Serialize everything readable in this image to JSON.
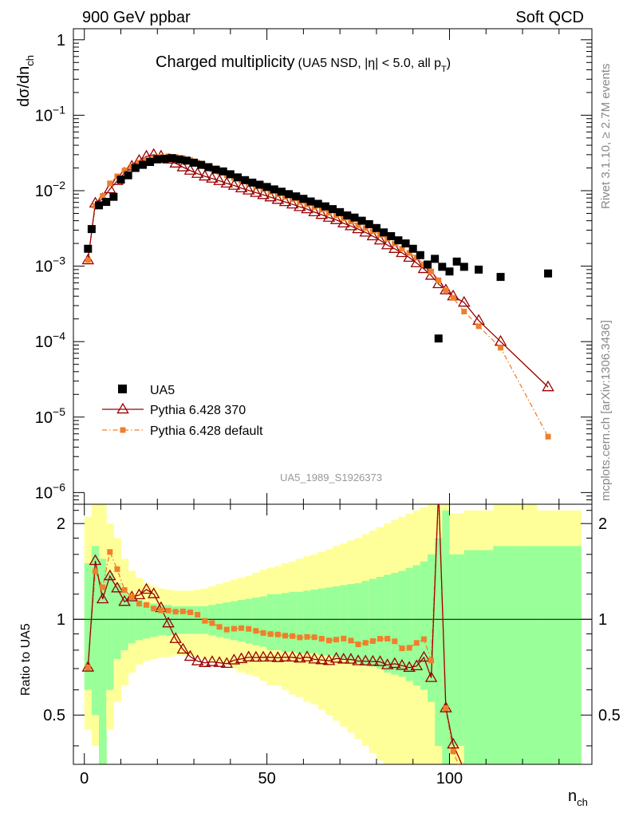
{
  "header": {
    "left": "900 GeV ppbar",
    "right": "Soft QCD"
  },
  "side_labels": {
    "rivet": "Rivet 3.1.10, ≥ 2.7M events",
    "mcplots": "mcplots.cern.ch [arXiv:1306.3436]"
  },
  "chart_data": {
    "type": "scatter",
    "title": "Charged multiplicity",
    "subtitle": "(UA5 NSD, |η| < 5.0, all p",
    "subtitle_sub": "T",
    "subtitle_end": ")",
    "analysis_id": "UA5_1989_S1926373",
    "ylabel_main": "dσ/dn",
    "ylabel_main_sub": "ch",
    "ylabel_ratio": "Ratio to UA5",
    "xlabel": "n",
    "xlabel_sub": "ch",
    "xlim": [
      -3,
      139
    ],
    "ylim_main": [
      7e-07,
      1.4
    ],
    "ylim_ratio": [
      0.35,
      2.3
    ],
    "x_ticks": [
      0,
      50,
      100
    ],
    "x_tick_labels": [
      "0",
      "50",
      "100"
    ],
    "y_ticks_main": [
      1,
      0.1,
      0.01,
      0.001,
      0.0001,
      1e-05,
      1e-06
    ],
    "y_tick_labels_main": [
      {
        "base": "1",
        "exp": ""
      },
      {
        "base": "10",
        "exp": "−1"
      },
      {
        "base": "10",
        "exp": "−2"
      },
      {
        "base": "10",
        "exp": "−3"
      },
      {
        "base": "10",
        "exp": "−4"
      },
      {
        "base": "10",
        "exp": "−5"
      },
      {
        "base": "10",
        "exp": "−6"
      }
    ],
    "y_ticks_ratio": [
      0.5,
      1,
      2
    ],
    "y_tick_labels_ratio": [
      "0.5",
      "1",
      "2"
    ],
    "legend": [
      {
        "name": "UA5",
        "marker": "square",
        "color": "#000000"
      },
      {
        "name": "Pythia 6.428 370",
        "marker": "triangle",
        "color": "#990000"
      },
      {
        "name": "Pythia 6.428 default",
        "marker": "square-small",
        "color": "#f07f2a"
      }
    ],
    "colors": {
      "data": "#000000",
      "p370": "#990000",
      "pdefault": "#f07f2a",
      "band_outer": "#ffff99",
      "band_inner": "#99ff99"
    },
    "series": [
      {
        "name": "UA5",
        "x": [
          1,
          2,
          4,
          6,
          8,
          10,
          12,
          14,
          16,
          18,
          20,
          22,
          24,
          26,
          28,
          30,
          32,
          34,
          36,
          38,
          40,
          42,
          44,
          46,
          48,
          50,
          52,
          54,
          56,
          58,
          60,
          62,
          64,
          66,
          68,
          70,
          72,
          74,
          76,
          78,
          80,
          82,
          84,
          86,
          88,
          90,
          92,
          94,
          96,
          97,
          98,
          100,
          102,
          104,
          108,
          114,
          127
        ],
        "y": [
          0.0017,
          0.0031,
          0.0064,
          0.0071,
          0.0083,
          0.014,
          0.016,
          0.02,
          0.022,
          0.024,
          0.026,
          0.0265,
          0.027,
          0.026,
          0.025,
          0.0235,
          0.022,
          0.0205,
          0.019,
          0.018,
          0.0165,
          0.015,
          0.0138,
          0.0128,
          0.012,
          0.0112,
          0.0104,
          0.0097,
          0.009,
          0.0084,
          0.0078,
          0.0072,
          0.0067,
          0.0062,
          0.0057,
          0.0052,
          0.0047,
          0.0044,
          0.004,
          0.0036,
          0.0032,
          0.0028,
          0.0025,
          0.0022,
          0.002,
          0.0017,
          0.0014,
          0.00105,
          0.00125,
          0.00011,
          0.00098,
          0.00085,
          0.00115,
          0.00098,
          0.0009,
          0.00072,
          0.0008
        ]
      },
      {
        "name": "Pythia 6.428 370",
        "x": [
          1,
          3,
          5,
          7,
          9,
          11,
          13,
          15,
          17,
          19,
          21,
          23,
          25,
          27,
          29,
          31,
          33,
          35,
          37,
          39,
          41,
          43,
          45,
          47,
          49,
          51,
          53,
          55,
          57,
          59,
          61,
          63,
          65,
          67,
          69,
          71,
          73,
          75,
          77,
          79,
          81,
          83,
          85,
          87,
          89,
          91,
          93,
          95,
          97,
          99,
          101,
          104,
          108,
          114,
          127
        ],
        "y": [
          0.0012,
          0.0068,
          0.0078,
          0.0105,
          0.0135,
          0.017,
          0.021,
          0.025,
          0.0285,
          0.03,
          0.0285,
          0.026,
          0.023,
          0.0205,
          0.0185,
          0.0168,
          0.0155,
          0.0145,
          0.0135,
          0.0125,
          0.0117,
          0.0108,
          0.0101,
          0.0094,
          0.0088,
          0.0082,
          0.0076,
          0.0071,
          0.0066,
          0.0061,
          0.0057,
          0.0052,
          0.0048,
          0.0044,
          0.0041,
          0.0037,
          0.0034,
          0.0031,
          0.0028,
          0.0025,
          0.0022,
          0.0019,
          0.0017,
          0.0015,
          0.0013,
          0.0011,
          0.00092,
          0.00075,
          0.00058,
          0.00048,
          0.0004,
          0.00033,
          0.00019,
          0.0001,
          2.5e-05
        ]
      },
      {
        "name": "Pythia 6.428 default",
        "x": [
          1,
          3,
          5,
          7,
          9,
          11,
          13,
          15,
          17,
          19,
          21,
          23,
          25,
          27,
          29,
          31,
          33,
          35,
          37,
          39,
          41,
          43,
          45,
          47,
          49,
          51,
          53,
          55,
          57,
          59,
          61,
          63,
          65,
          67,
          69,
          71,
          73,
          75,
          77,
          79,
          81,
          83,
          85,
          87,
          89,
          91,
          93,
          95,
          97,
          99,
          101,
          104,
          108,
          114,
          127
        ],
        "y": [
          0.0012,
          0.0063,
          0.0085,
          0.0125,
          0.0155,
          0.0185,
          0.021,
          0.0235,
          0.0255,
          0.027,
          0.028,
          0.0285,
          0.028,
          0.027,
          0.0255,
          0.0235,
          0.021,
          0.0192,
          0.0175,
          0.016,
          0.0147,
          0.0135,
          0.0124,
          0.0114,
          0.0105,
          0.0097,
          0.009,
          0.0083,
          0.0077,
          0.0071,
          0.0066,
          0.0061,
          0.0056,
          0.0051,
          0.0047,
          0.0043,
          0.0039,
          0.0035,
          0.0032,
          0.0029,
          0.0026,
          0.0023,
          0.002,
          0.0017,
          0.0015,
          0.0013,
          0.00105,
          0.00085,
          0.00065,
          0.00048,
          0.00038,
          0.00025,
          0.00016,
          8.3e-05,
          5.5e-06
        ]
      }
    ],
    "ratio_bands": {
      "x_edges": [
        0,
        2,
        4,
        6,
        8,
        10,
        12,
        14,
        16,
        18,
        20,
        22,
        24,
        26,
        28,
        30,
        32,
        34,
        36,
        38,
        40,
        42,
        44,
        46,
        48,
        50,
        52,
        54,
        56,
        58,
        60,
        62,
        64,
        66,
        68,
        70,
        72,
        74,
        76,
        78,
        80,
        82,
        84,
        86,
        88,
        90,
        92,
        94,
        96,
        98,
        100,
        104,
        112,
        118,
        124,
        136
      ],
      "inner_lo": [
        0.6,
        0.5,
        0.35,
        0.6,
        0.75,
        0.8,
        0.84,
        0.86,
        0.87,
        0.88,
        0.89,
        0.89,
        0.9,
        0.9,
        0.9,
        0.9,
        0.9,
        0.89,
        0.88,
        0.87,
        0.86,
        0.85,
        0.84,
        0.83,
        0.82,
        0.8,
        0.8,
        0.79,
        0.79,
        0.78,
        0.78,
        0.78,
        0.77,
        0.77,
        0.76,
        0.75,
        0.74,
        0.73,
        0.72,
        0.71,
        0.7,
        0.68,
        0.67,
        0.66,
        0.64,
        0.62,
        0.6,
        0.55,
        0.4,
        0.35,
        0.4,
        0.35,
        0.35,
        0.35,
        0.35
      ],
      "inner_hi": [
        1.5,
        1.7,
        1.55,
        1.4,
        1.3,
        1.22,
        1.18,
        1.15,
        1.13,
        1.12,
        1.11,
        1.11,
        1.1,
        1.1,
        1.1,
        1.1,
        1.1,
        1.11,
        1.12,
        1.13,
        1.14,
        1.15,
        1.16,
        1.17,
        1.18,
        1.2,
        1.2,
        1.21,
        1.22,
        1.22,
        1.23,
        1.24,
        1.25,
        1.26,
        1.27,
        1.28,
        1.29,
        1.3,
        1.32,
        1.34,
        1.36,
        1.38,
        1.4,
        1.42,
        1.45,
        1.48,
        1.52,
        1.6,
        1.8,
        2.2,
        1.6,
        1.65,
        1.7,
        1.7,
        1.7
      ],
      "outer_lo": [
        0.45,
        0.4,
        0.35,
        0.45,
        0.55,
        0.62,
        0.68,
        0.72,
        0.74,
        0.75,
        0.76,
        0.76,
        0.77,
        0.77,
        0.77,
        0.76,
        0.75,
        0.74,
        0.73,
        0.72,
        0.7,
        0.68,
        0.67,
        0.66,
        0.64,
        0.62,
        0.62,
        0.6,
        0.58,
        0.57,
        0.55,
        0.54,
        0.52,
        0.5,
        0.48,
        0.46,
        0.44,
        0.42,
        0.4,
        0.38,
        0.36,
        0.35,
        0.35,
        0.35,
        0.35,
        0.35,
        0.35,
        0.35,
        0.35,
        0.35,
        0.35,
        0.35,
        0.35,
        0.35,
        0.35
      ],
      "outer_hi": [
        2.1,
        2.3,
        2.3,
        2.0,
        1.8,
        1.55,
        1.42,
        1.35,
        1.3,
        1.27,
        1.25,
        1.24,
        1.23,
        1.23,
        1.23,
        1.24,
        1.25,
        1.27,
        1.29,
        1.31,
        1.33,
        1.35,
        1.37,
        1.4,
        1.43,
        1.45,
        1.47,
        1.5,
        1.52,
        1.55,
        1.58,
        1.6,
        1.63,
        1.66,
        1.7,
        1.73,
        1.77,
        1.8,
        1.85,
        1.9,
        1.95,
        2.0,
        2.05,
        2.1,
        2.15,
        2.2,
        2.25,
        2.3,
        2.3,
        2.3,
        2.15,
        2.2,
        2.3,
        2.3,
        2.2
      ]
    }
  }
}
